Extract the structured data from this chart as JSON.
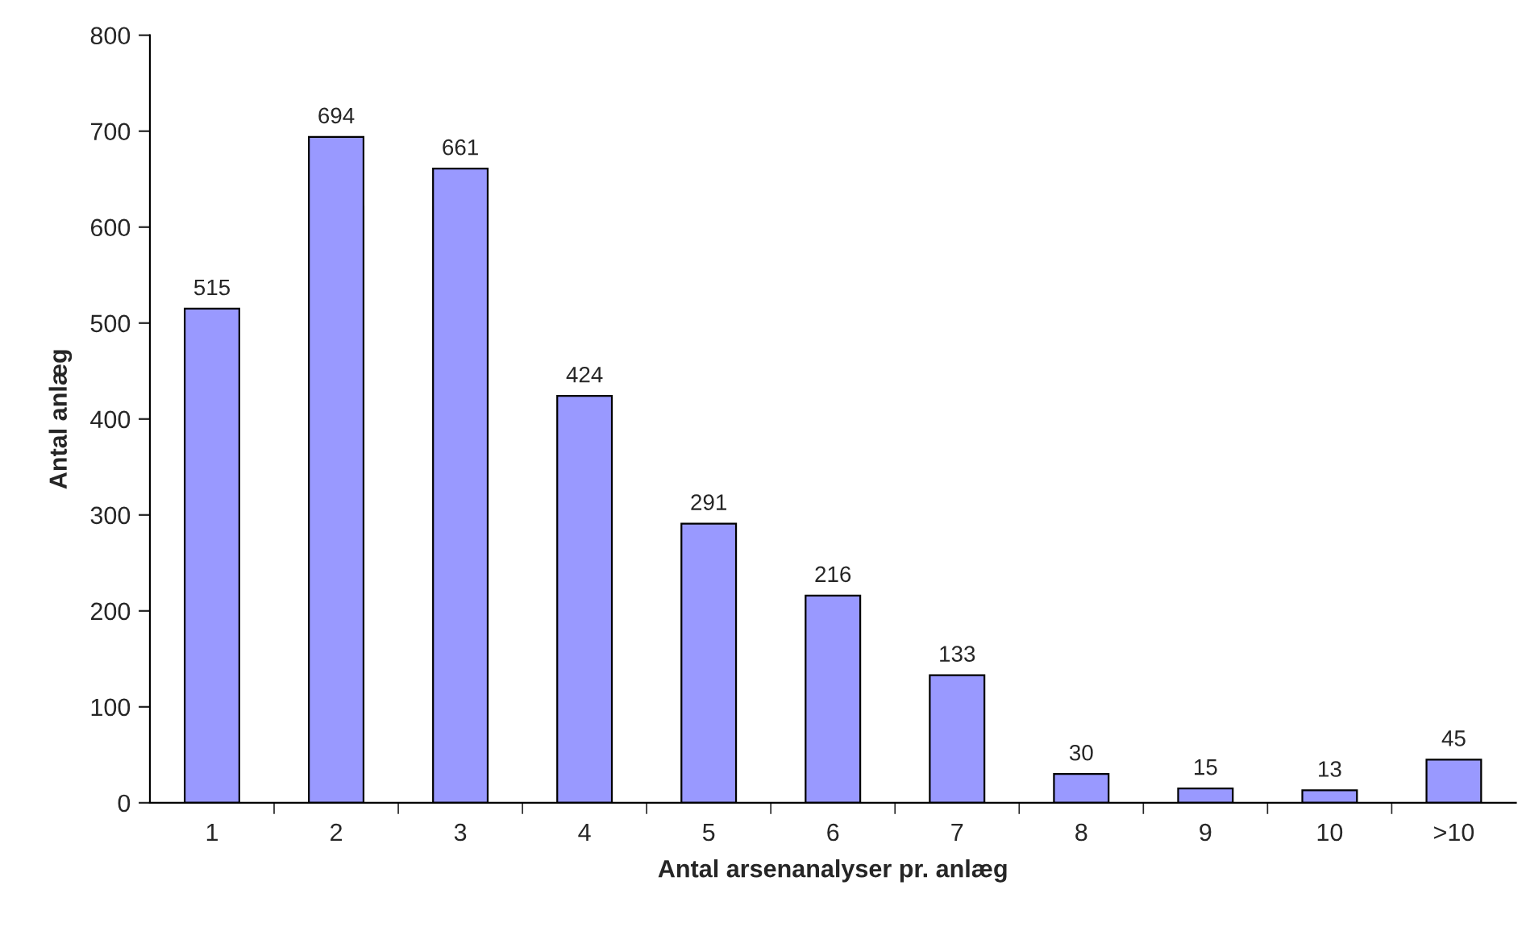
{
  "chart_data": {
    "type": "bar",
    "xlabel": "Antal arsenanalyser pr. anlæg",
    "ylabel": "Antal anlæg",
    "categories": [
      "1",
      "2",
      "3",
      "4",
      "5",
      "6",
      "7",
      "8",
      "9",
      "10",
      ">10"
    ],
    "values": [
      515,
      694,
      661,
      424,
      291,
      216,
      133,
      30,
      15,
      13,
      45
    ],
    "color": "#9999ff",
    "ylim": [
      0,
      800
    ],
    "yticks": [
      0,
      100,
      200,
      300,
      400,
      500,
      600,
      700,
      800
    ],
    "data_labels": true,
    "grid": false,
    "legend": false
  }
}
